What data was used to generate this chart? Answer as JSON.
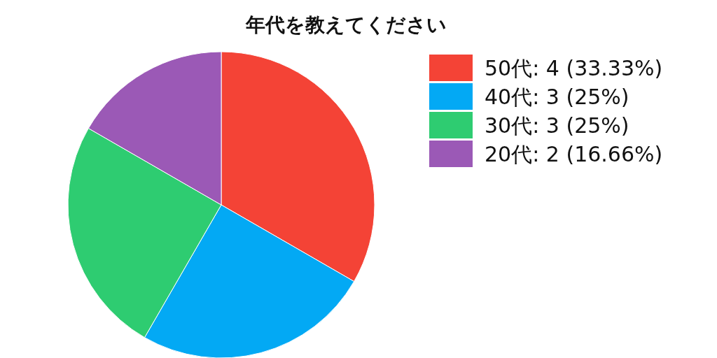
{
  "chart_data": {
    "type": "pie",
    "title": "年代を教えてください",
    "categories": [
      "50代: 4 (33.33%)",
      "40代: 3 (25%)",
      "30代: 3 (25%)",
      "20代: 2 (16.66%)"
    ],
    "values": [
      4,
      3,
      3,
      2
    ],
    "colors": [
      "#f44336",
      "#03a9f4",
      "#2ecc71",
      "#9b59b6"
    ],
    "legend": "right"
  }
}
